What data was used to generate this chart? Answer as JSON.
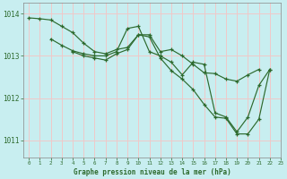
{
  "title": "Graphe pression niveau de la mer (hPa)",
  "bg_color": "#c8eef0",
  "line_color": "#2d6a2d",
  "grid_color": "#f0c8c8",
  "spine_color": "#888888",
  "xlim": [
    -0.5,
    23
  ],
  "ylim": [
    1010.6,
    1014.25
  ],
  "yticks": [
    1011,
    1012,
    1013,
    1014
  ],
  "xticks": [
    0,
    1,
    2,
    3,
    4,
    5,
    6,
    7,
    8,
    9,
    10,
    11,
    12,
    13,
    14,
    15,
    16,
    17,
    18,
    19,
    20,
    21,
    22,
    23
  ],
  "series": [
    {
      "x": [
        0,
        1,
        2,
        3,
        4,
        5,
        6,
        7,
        8,
        9,
        10,
        11,
        12,
        13,
        14,
        15,
        16,
        17,
        18,
        19,
        20,
        21,
        22,
        23
      ],
      "y": [
        1013.9,
        1013.88,
        1013.85,
        1013.7,
        1013.55,
        1013.3,
        1013.1,
        1013.05,
        1013.15,
        1013.2,
        1013.5,
        1013.5,
        1013.1,
        1013.15,
        1013.0,
        1012.8,
        1012.6,
        1012.58,
        1012.45,
        1012.4,
        1012.55,
        1012.68,
        null,
        null
      ]
    },
    {
      "x": [
        0,
        1,
        2,
        3,
        4,
        5,
        6,
        7,
        8,
        9,
        10,
        11,
        12,
        13,
        14,
        15,
        16,
        17,
        18,
        19,
        20,
        21,
        22,
        23
      ],
      "y": [
        null,
        null,
        1013.4,
        1013.25,
        1013.12,
        1013.05,
        1013.0,
        1013.0,
        1013.1,
        1013.65,
        1013.7,
        1013.1,
        1013.0,
        1012.85,
        1012.55,
        1012.85,
        1012.8,
        1011.65,
        1011.55,
        1011.2,
        1011.55,
        1012.3,
        1012.68,
        null
      ]
    },
    {
      "x": [
        0,
        1,
        2,
        3,
        4,
        5,
        6,
        7,
        8,
        9,
        10,
        11,
        12,
        13,
        14,
        15,
        16,
        17,
        18,
        19,
        20,
        21,
        22,
        23
      ],
      "y": [
        null,
        null,
        null,
        null,
        1013.1,
        1013.0,
        1012.95,
        1012.9,
        1013.05,
        1013.15,
        1013.5,
        1013.45,
        1012.95,
        1012.65,
        1012.45,
        1012.2,
        1011.85,
        1011.55,
        1011.52,
        1011.15,
        1011.15,
        1011.5,
        1012.68,
        null
      ]
    }
  ]
}
